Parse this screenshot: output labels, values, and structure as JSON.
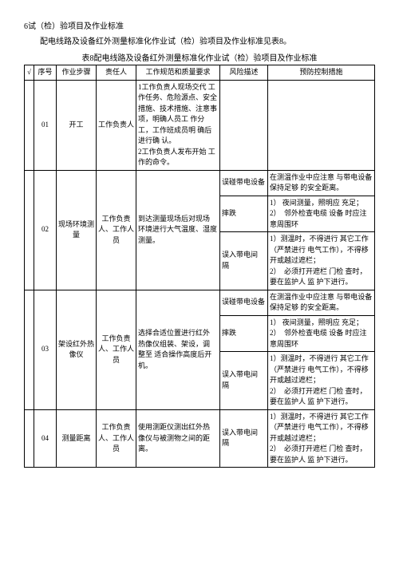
{
  "header": {
    "section_title": "6试（检）验项目及作业标准",
    "desc_line": "配电线路及设备红外测量标准化作业试（检）验项目及作业标准见表8。",
    "table_caption": "表8配电线路及设备红外测量标准化作业试（检）验项目及作业标准"
  },
  "table": {
    "headers": {
      "check": "√",
      "seq": "序号",
      "step": "作业步骤",
      "resp": "责任人",
      "req": "工作规范和质量要求",
      "risk": "风险描述",
      "ctrl": "预防控制措施"
    },
    "rows": [
      {
        "seq": "01",
        "step": "开工",
        "resp": "工作负责人",
        "req": "1工作负责人现场交代 工作任务、危险源点、安全 措施、技术措施、注意事 项，明确人员工 作分工，工作班成员明 确后进行确 认。\n2工作负责人发布开始 工作的命令。",
        "risk_rows": [
          {
            "risk": "",
            "ctrl": ""
          }
        ]
      },
      {
        "seq": "02",
        "step": "现场环境测 量",
        "resp": "工作负责人、工作人员",
        "req": "到达测量现场后对现场 环境进行大气温度、湿度 测量。",
        "risk_rows": [
          {
            "risk": "误碰带电设备",
            "ctrl": "在测温作业中应注意 与带电设备保持足够 的安全距离。"
          },
          {
            "risk": "摔跌",
            "ctrl": "1） 夜间测量，照明应 充足；\n2）　邻外检查电缆 设备 时应注意周围环"
          },
          {
            "risk": "误入带电间 隔",
            "ctrl": "1）测温时，不得进行 其它工作（严禁进行 电气工作），不得移 开或越过遮栏；\n2）　必须打开遮栏 门检 查时，要在监护人 监 护下进行。"
          }
        ]
      },
      {
        "seq": "03",
        "step": "架设红外热 像仪",
        "resp": "工作负责人、工作人员",
        "req": "选择合适位置进行红外 热像仪组装、架设，调 整至 适合操作高度后开 机。",
        "risk_rows": [
          {
            "risk": "误碰带电设备",
            "ctrl": "在测温作业中应注意 与带电设备保持足够 的安全距离。"
          },
          {
            "risk": "摔跌",
            "ctrl": "1） 夜间测量，照明应 充足；\n2）　邻外检查电缆 设备 时应注意周围环"
          },
          {
            "risk": "误入带电间 隔",
            "ctrl": "1）测温时，不得进行 其它工作（严禁进行 电气工作），不得移 开或越过遮栏；\n2）　必须打开遮栏 门检 查时，要在监护人 监 护下进行。"
          }
        ]
      },
      {
        "seq": "04",
        "step": "测量距离",
        "resp": "工作负责人、工作人员",
        "req": "使用测距仪测出红外热 像仪与被测物之间的距 离。",
        "risk_rows": [
          {
            "risk": "误入带电间 隔",
            "ctrl": "1）测温时，不得进行 其它工作（严禁进行 电气工作），不得移 开或越过遮栏；\n2）　必须打开遮栏 门检 查时，要在监护人 监 护下进行。"
          }
        ]
      }
    ]
  }
}
